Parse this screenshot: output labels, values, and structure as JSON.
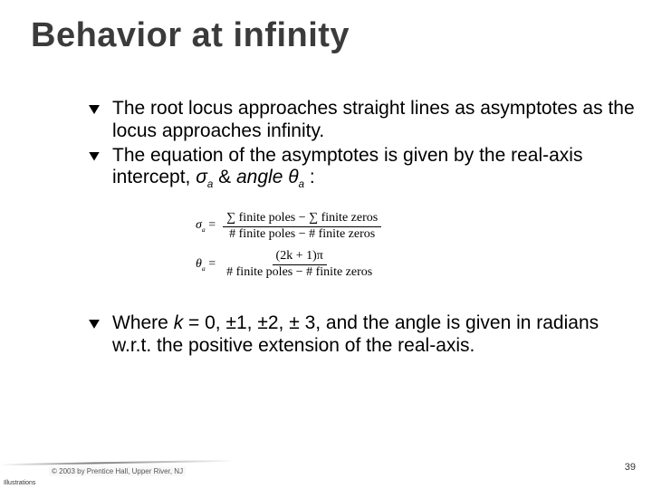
{
  "title": "Behavior at infinity",
  "bullets": {
    "b1": "The root locus approaches straight lines as asymptotes as the locus approaches infinity.",
    "b2_pre": "The equation of the asymptotes is given by the real-axis intercept, ",
    "b2_sym1": "σ",
    "b2_sub1": "a",
    "b2_mid": " & ",
    "b2_ang": "angle",
    "b2_sp": " ",
    "b2_sym2": "θ",
    "b2_sub2": "a",
    "b2_post": " :",
    "b3_pre": "Where ",
    "b3_k": "k",
    "b3_vals": " = 0, ±1, ±2, ± 3, and the angle is given in radians w.r.t. the positive extension of the real-axis."
  },
  "equations": {
    "sigma_lhs": "σ",
    "sigma_sub": "a",
    "eq": " = ",
    "sigma_num": "∑ finite poles − ∑ finite zeros",
    "sigma_den": "# finite poles − # finite zeros",
    "theta_lhs": "θ",
    "theta_sub": "a",
    "theta_num": "(2k + 1)π",
    "theta_den": "# finite poles − # finite zeros"
  },
  "footer": {
    "illustrations": "Illustrations",
    "copyright": "© 2003 by Prentice Hall, Upper River, NJ",
    "page": "39"
  },
  "colors": {
    "text": "#000000",
    "title": "#3b3b3b",
    "bg": "#ffffff"
  }
}
